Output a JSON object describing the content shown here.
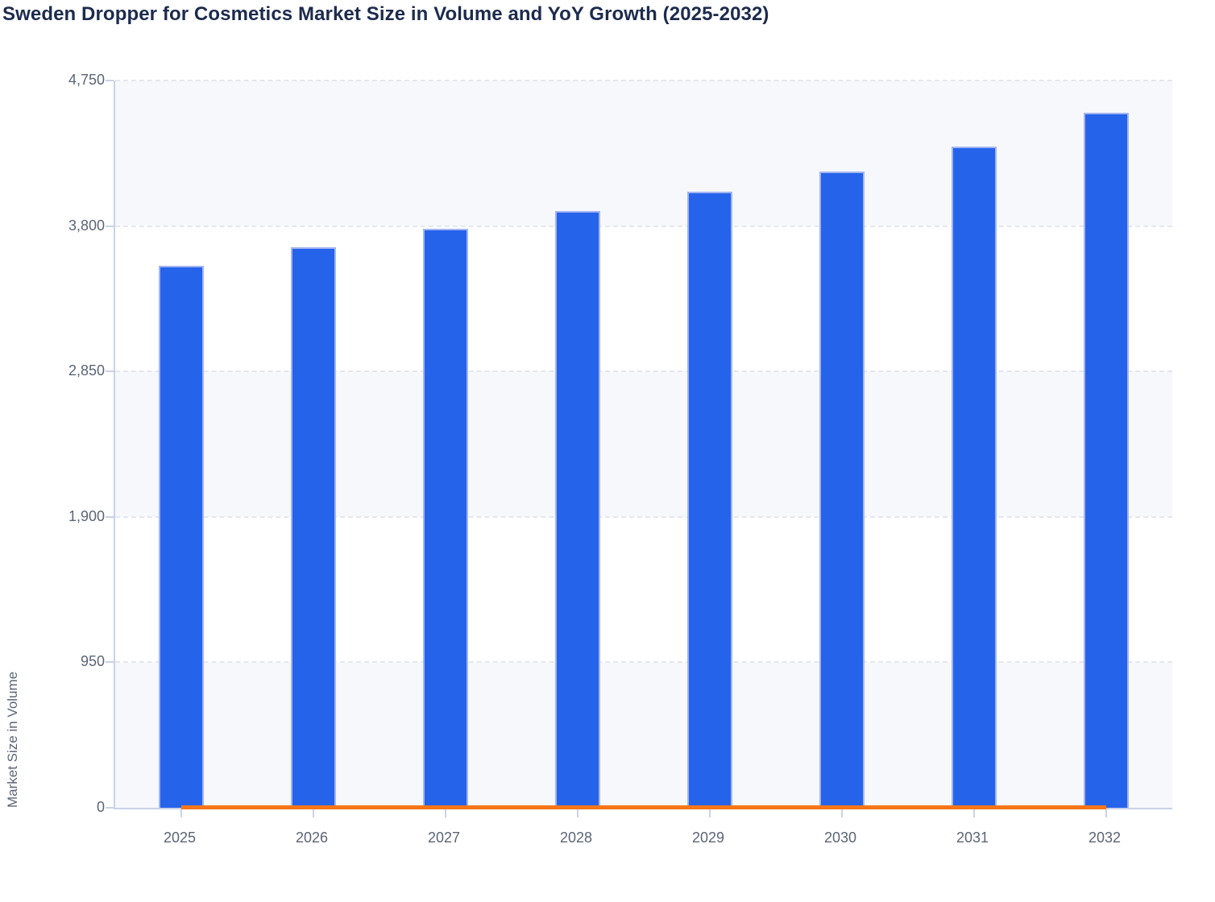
{
  "chart_data": {
    "type": "bar",
    "title": "Sweden Dropper for Cosmetics Market Size in Volume and YoY Growth (2025-2032)",
    "title_color": "#1c2b4d",
    "ylabel": "Market Size in Volume",
    "xlabel": "",
    "categories": [
      "2025",
      "2026",
      "2027",
      "2028",
      "2029",
      "2030",
      "2031",
      "2032"
    ],
    "series": [
      {
        "name": "Market Size in Volume",
        "type": "bar",
        "color": "#2563eb",
        "border_color": "#a3b5f0",
        "values": [
          3540,
          3660,
          3780,
          3900,
          4025,
          4155,
          4320,
          4540
        ]
      },
      {
        "name": "YoY Growth",
        "type": "line",
        "color": "#f6761a",
        "axis": "secondary",
        "appearance": "flat horizontal line at chart baseline spanning 2025-2032; secondary axis not labeled",
        "values_on_primary_axis": [
          0,
          0,
          0,
          0,
          0,
          0,
          0,
          0
        ]
      }
    ],
    "ylim": [
      0,
      4750
    ],
    "yticks": [
      {
        "value": 0,
        "label": "0"
      },
      {
        "value": 950,
        "label": "950"
      },
      {
        "value": 1900,
        "label": "1,900"
      },
      {
        "value": 2850,
        "label": "2,850"
      },
      {
        "value": 3800,
        "label": "3,800"
      },
      {
        "value": 4750,
        "label": "4,750"
      }
    ],
    "grid": {
      "horizontal": "dashed",
      "vertical": false,
      "gridline_color": "#e4e7ed",
      "band_fill_alternating": [
        "#f7f8fb",
        "#ffffff"
      ],
      "axis_color": "#c9d2e8",
      "tick_label_color": "#5b6577"
    },
    "legend": "none"
  }
}
